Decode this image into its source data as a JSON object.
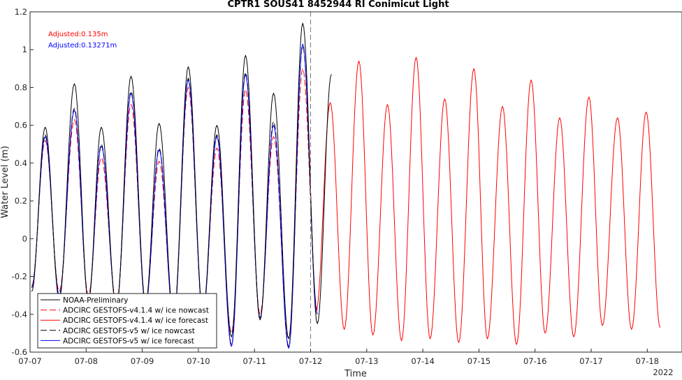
{
  "chart_data": {
    "type": "line",
    "title": "CPTR1 SOUS41 8452944 RI Conimicut Light",
    "xlabel": "Time",
    "ylabel": "Water Level (m)",
    "x_ticks": [
      "07-07",
      "07-08",
      "07-09",
      "07-10",
      "07-11",
      "07-12",
      "07-13",
      "07-14",
      "07-15",
      "07-16",
      "07-17",
      "07-18"
    ],
    "x_year_label": "2022",
    "xlim_days": [
      0,
      11.6
    ],
    "ylim": [
      -0.6,
      1.2
    ],
    "y_ticks": [
      "-0.6",
      "-0.4",
      "-0.2",
      "0",
      "0.2",
      "0.4",
      "0.6",
      "0.8",
      "1",
      "1.2"
    ],
    "forecast_start_day": 5.0,
    "grid": false,
    "legend_position": "bottom-left",
    "annotations": [
      {
        "text": "Adjusted:0.135m",
        "color": "#ff0000"
      },
      {
        "text": "Adjusted:0.13271m",
        "color": "#0000ff"
      }
    ],
    "series": [
      {
        "name": "NOAA-Preliminary",
        "color": "#000000",
        "dash": "solid",
        "peaks": [
          {
            "t": 0.27,
            "v": 0.59
          },
          {
            "t": 0.79,
            "v": 0.82
          },
          {
            "t": 1.27,
            "v": 0.59
          },
          {
            "t": 1.8,
            "v": 0.86
          },
          {
            "t": 2.3,
            "v": 0.61
          },
          {
            "t": 2.82,
            "v": 0.91
          },
          {
            "t": 3.33,
            "v": 0.6
          },
          {
            "t": 3.84,
            "v": 0.97
          },
          {
            "t": 4.34,
            "v": 0.77
          },
          {
            "t": 4.86,
            "v": 1.14
          },
          {
            "t": 5.37,
            "v": 0.87
          }
        ],
        "troughs": [
          {
            "t": 0.03,
            "v": -0.28
          },
          {
            "t": 0.52,
            "v": -0.32
          },
          {
            "t": 1.04,
            "v": -0.33
          },
          {
            "t": 1.54,
            "v": -0.37
          },
          {
            "t": 2.06,
            "v": -0.34
          },
          {
            "t": 2.56,
            "v": -0.42
          },
          {
            "t": 3.08,
            "v": -0.39
          },
          {
            "t": 3.59,
            "v": -0.52
          },
          {
            "t": 4.1,
            "v": -0.43
          },
          {
            "t": 4.61,
            "v": -0.53
          },
          {
            "t": 5.12,
            "v": -0.45
          }
        ]
      },
      {
        "name": "ADCIRC GESTOFS-v4.1.4 w/ ice nowcast",
        "color": "#ff0000",
        "dash": "dashed",
        "peaks": [
          {
            "t": 0.27,
            "v": 0.52
          },
          {
            "t": 0.79,
            "v": 0.63
          },
          {
            "t": 1.27,
            "v": 0.43
          },
          {
            "t": 1.8,
            "v": 0.71
          },
          {
            "t": 2.3,
            "v": 0.41
          },
          {
            "t": 2.82,
            "v": 0.8
          },
          {
            "t": 3.33,
            "v": 0.48
          },
          {
            "t": 3.84,
            "v": 0.79
          },
          {
            "t": 4.34,
            "v": 0.54
          },
          {
            "t": 4.86,
            "v": 0.9
          }
        ],
        "troughs": [
          {
            "t": 0.03,
            "v": -0.25
          },
          {
            "t": 0.52,
            "v": -0.28
          },
          {
            "t": 1.04,
            "v": -0.3
          },
          {
            "t": 1.54,
            "v": -0.34
          },
          {
            "t": 2.06,
            "v": -0.33
          },
          {
            "t": 2.56,
            "v": -0.4
          },
          {
            "t": 3.08,
            "v": -0.38
          },
          {
            "t": 3.59,
            "v": -0.5
          },
          {
            "t": 4.1,
            "v": -0.4
          },
          {
            "t": 4.61,
            "v": -0.53
          },
          {
            "t": 5.12,
            "v": -0.38
          }
        ]
      },
      {
        "name": "ADCIRC GESTOFS-v4.1.4 w/ ice forecast",
        "color": "#ff0000",
        "dash": "solid",
        "peaks": [
          {
            "t": 5.35,
            "v": 0.72
          },
          {
            "t": 5.86,
            "v": 0.94
          },
          {
            "t": 6.37,
            "v": 0.71
          },
          {
            "t": 6.88,
            "v": 0.96
          },
          {
            "t": 7.39,
            "v": 0.74
          },
          {
            "t": 7.91,
            "v": 0.9
          },
          {
            "t": 8.42,
            "v": 0.7
          },
          {
            "t": 8.93,
            "v": 0.84
          },
          {
            "t": 9.44,
            "v": 0.64
          },
          {
            "t": 9.96,
            "v": 0.75
          },
          {
            "t": 10.47,
            "v": 0.64
          },
          {
            "t": 10.98,
            "v": 0.67
          }
        ],
        "troughs": [
          {
            "t": 5.1,
            "v": -0.38
          },
          {
            "t": 5.6,
            "v": -0.48
          },
          {
            "t": 6.11,
            "v": -0.51
          },
          {
            "t": 6.62,
            "v": -0.54
          },
          {
            "t": 7.13,
            "v": -0.53
          },
          {
            "t": 7.64,
            "v": -0.55
          },
          {
            "t": 8.15,
            "v": -0.53
          },
          {
            "t": 8.67,
            "v": -0.56
          },
          {
            "t": 9.18,
            "v": -0.5
          },
          {
            "t": 9.69,
            "v": -0.52
          },
          {
            "t": 10.2,
            "v": -0.46
          },
          {
            "t": 10.72,
            "v": -0.48
          },
          {
            "t": 11.23,
            "v": -0.47
          }
        ]
      },
      {
        "name": "ADCIRC GESTOFS-v5 w/ ice nowcast",
        "color": "#000000",
        "dash": "dashed",
        "peaks": [
          {
            "t": 0.27,
            "v": 0.55
          },
          {
            "t": 0.79,
            "v": 0.69
          },
          {
            "t": 1.27,
            "v": 0.5
          },
          {
            "t": 1.8,
            "v": 0.78
          },
          {
            "t": 2.3,
            "v": 0.48
          },
          {
            "t": 2.82,
            "v": 0.85
          },
          {
            "t": 3.33,
            "v": 0.55
          },
          {
            "t": 3.84,
            "v": 0.88
          },
          {
            "t": 4.34,
            "v": 0.62
          },
          {
            "t": 4.86,
            "v": 1.02
          }
        ],
        "troughs": [
          {
            "t": 0.03,
            "v": -0.26
          },
          {
            "t": 0.52,
            "v": -0.3
          },
          {
            "t": 1.04,
            "v": -0.32
          },
          {
            "t": 1.54,
            "v": -0.36
          },
          {
            "t": 2.06,
            "v": -0.35
          },
          {
            "t": 2.56,
            "v": -0.42
          },
          {
            "t": 3.08,
            "v": -0.4
          },
          {
            "t": 3.59,
            "v": -0.56
          },
          {
            "t": 4.1,
            "v": -0.42
          },
          {
            "t": 4.61,
            "v": -0.57
          },
          {
            "t": 5.12,
            "v": -0.4
          }
        ]
      },
      {
        "name": "ADCIRC GESTOFS-v5 w/ ice forecast",
        "color": "#0000ff",
        "dash": "solid",
        "peaks": [
          {
            "t": 0.27,
            "v": 0.54
          },
          {
            "t": 0.79,
            "v": 0.68
          },
          {
            "t": 1.27,
            "v": 0.49
          },
          {
            "t": 1.8,
            "v": 0.77
          },
          {
            "t": 2.3,
            "v": 0.47
          },
          {
            "t": 2.82,
            "v": 0.84
          },
          {
            "t": 3.33,
            "v": 0.54
          },
          {
            "t": 3.84,
            "v": 0.87
          },
          {
            "t": 4.34,
            "v": 0.6
          },
          {
            "t": 4.86,
            "v": 1.03
          }
        ],
        "troughs": [
          {
            "t": 0.03,
            "v": -0.26
          },
          {
            "t": 0.52,
            "v": -0.3
          },
          {
            "t": 1.04,
            "v": -0.32
          },
          {
            "t": 1.54,
            "v": -0.36
          },
          {
            "t": 2.06,
            "v": -0.35
          },
          {
            "t": 2.56,
            "v": -0.43
          },
          {
            "t": 3.08,
            "v": -0.4
          },
          {
            "t": 3.59,
            "v": -0.57
          },
          {
            "t": 4.1,
            "v": -0.42
          },
          {
            "t": 4.61,
            "v": -0.58
          },
          {
            "t": 5.12,
            "v": -0.4
          }
        ]
      }
    ]
  }
}
